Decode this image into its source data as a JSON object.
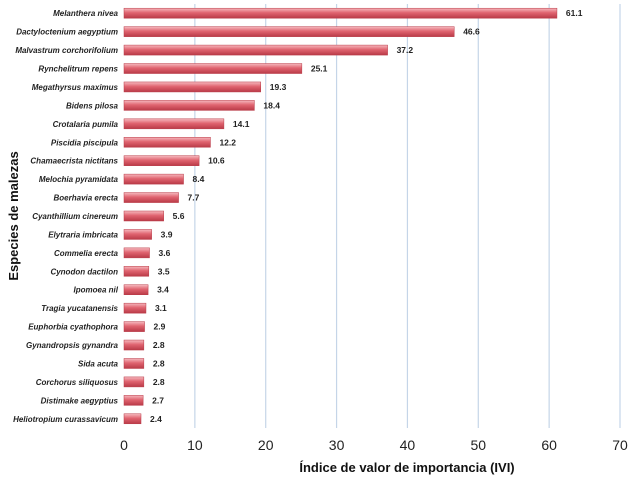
{
  "chart_data": {
    "type": "bar",
    "orientation": "horizontal",
    "title": "",
    "xlabel": "Índice de valor de importancia (IVI)",
    "ylabel": "Especies de malezas",
    "xlim": [
      0,
      70
    ],
    "xticks": [
      0,
      10,
      20,
      30,
      40,
      50,
      60,
      70
    ],
    "grid": "vertical",
    "bar_color": "#e06470",
    "bar_highlight_color": "#f6b9bf",
    "bar_edge_color": "#b93a47",
    "grid_color": "#c5d5e8",
    "categories": [
      "Melanthera nivea",
      "Dactyloctenium aegyptium",
      "Malvastrum corchorifolium",
      "Rynchelitrum repens",
      "Megathyrsus maximus",
      "Bidens pilosa",
      "Crotalaria pumila",
      "Piscidia piscipula",
      "Chamaecrista nictitans",
      "Melochia pyramidata",
      "Boerhavia erecta",
      "Cyanthillium cinereum",
      "Elytraria imbricata",
      "Commelia erecta",
      "Cynodon dactilon",
      "Ipomoea nil",
      "Tragia yucatanensis",
      "Euphorbia cyathophora",
      "Gynandropsis gynandra",
      "Sida acuta",
      "Corchorus siliquosus",
      "Distimake aegyptius",
      "Heliotropium curassavicum"
    ],
    "values": [
      61.1,
      46.6,
      37.2,
      25.1,
      19.3,
      18.4,
      14.1,
      12.2,
      10.6,
      8.4,
      7.7,
      5.6,
      3.9,
      3.6,
      3.5,
      3.4,
      3.1,
      2.9,
      2.8,
      2.8,
      2.8,
      2.7,
      2.4
    ]
  }
}
